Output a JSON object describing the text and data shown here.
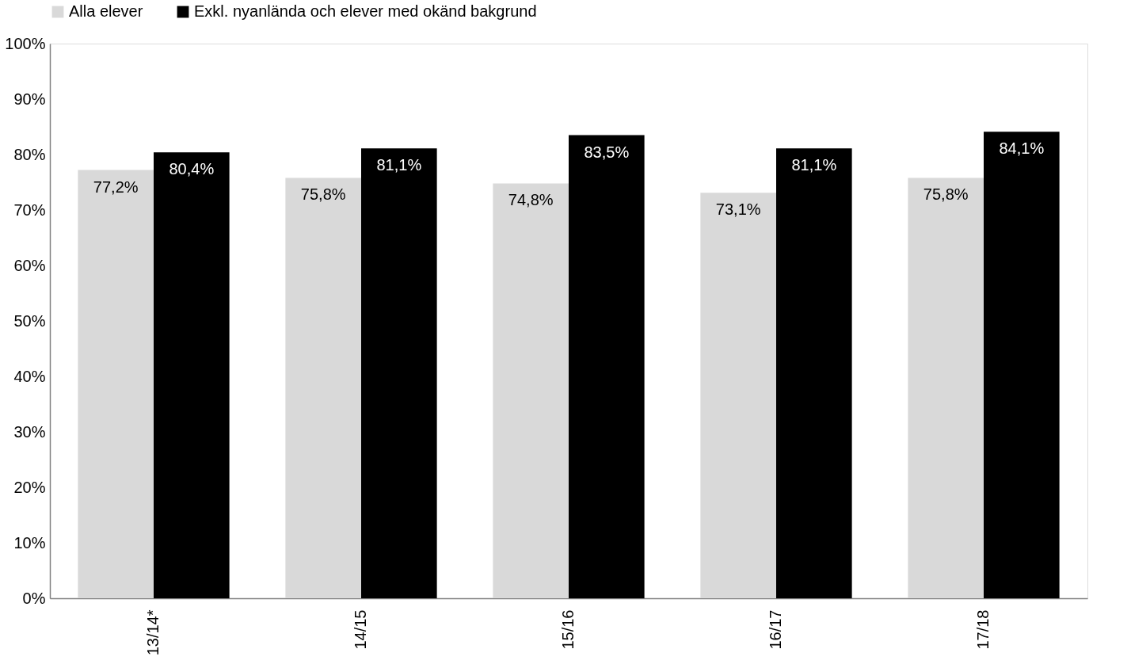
{
  "chart_data": {
    "type": "bar",
    "categories": [
      "13/14*",
      "14/15",
      "15/16",
      "16/17",
      "17/18"
    ],
    "series": [
      {
        "name": "Alla elever",
        "color": "#d9d9d9",
        "values": [
          77.2,
          75.8,
          74.8,
          73.1,
          75.8
        ],
        "value_labels": [
          "77,2%",
          "75,8%",
          "74,8%",
          "73,1%",
          "75,8%"
        ]
      },
      {
        "name": "Exkl. nyanlända och elever med okänd bakgrund",
        "color": "#000000",
        "values": [
          80.4,
          81.1,
          83.5,
          81.1,
          84.1
        ],
        "value_labels": [
          "80,4%",
          "81,1%",
          "83,5%",
          "81,1%",
          "84,1%"
        ]
      }
    ],
    "ylim": [
      0,
      100
    ],
    "yticks": [
      {
        "value": 0,
        "label": "0%"
      },
      {
        "value": 10,
        "label": "10%"
      },
      {
        "value": 20,
        "label": "20%"
      },
      {
        "value": 30,
        "label": "30%"
      },
      {
        "value": 40,
        "label": "40%"
      },
      {
        "value": 50,
        "label": "50%"
      },
      {
        "value": 60,
        "label": "60%"
      },
      {
        "value": 70,
        "label": "70%"
      },
      {
        "value": 80,
        "label": "80%"
      },
      {
        "value": 90,
        "label": "90%"
      },
      {
        "value": 100,
        "label": "100%"
      }
    ],
    "grid": false,
    "legend": "top"
  }
}
